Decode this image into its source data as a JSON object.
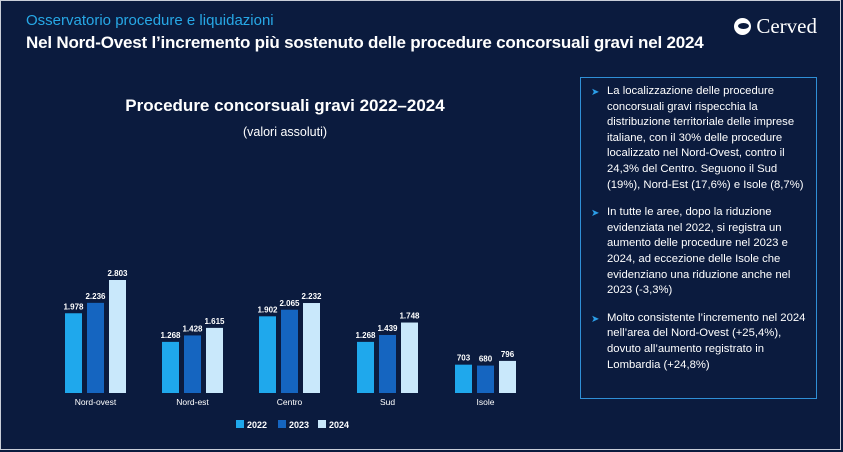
{
  "header": {
    "kicker": "Osservatorio procedure e liquidazioni",
    "title": "Nel Nord-Ovest l’incremento più sostenuto delle procedure concorsuali gravi nel 2024",
    "logo_text": "Cerved"
  },
  "colors": {
    "background": "#0b1b3e",
    "accent": "#27a8e6",
    "s2022": "#1fa8ec",
    "s2023": "#1565c0",
    "s2024": "#c9e8fb"
  },
  "chart_data": {
    "type": "bar",
    "title": "Procedure concorsuali gravi 2022–2024",
    "subtitle": "(valori assoluti)",
    "categories": [
      "Nord-ovest",
      "Nord-est",
      "Centro",
      "Sud",
      "Isole"
    ],
    "series": [
      {
        "name": "2022",
        "values": [
          1978,
          1268,
          1902,
          1268,
          703
        ],
        "labels": [
          "1.978",
          "1.268",
          "1.902",
          "1.268",
          "703"
        ]
      },
      {
        "name": "2023",
        "values": [
          2236,
          1428,
          2065,
          1439,
          680
        ],
        "labels": [
          "2.236",
          "1.428",
          "2.065",
          "1.439",
          "680"
        ]
      },
      {
        "name": "2024",
        "values": [
          2803,
          1615,
          2232,
          1748,
          796
        ],
        "labels": [
          "2.803",
          "1.615",
          "2.232",
          "1.748",
          "796"
        ]
      }
    ],
    "ylim": [
      0,
      3000
    ],
    "grid": false,
    "legend_position": "bottom"
  },
  "notes": [
    "La localizzazione delle procedure concorsuali gravi rispecchia la distribuzione territoriale delle imprese italiane, con il 30% delle procedure localizzato nel Nord-Ovest, contro il 24,3% del Centro. Seguono il Sud (19%), Nord-Est (17,6%) e Isole (8,7%)",
    "In tutte le aree, dopo la riduzione evidenziata nel 2022, si registra un aumento delle procedure nel 2023 e 2024, ad eccezione delle Isole che evidenziano una riduzione anche nel 2023 (-3,3%)",
    "Molto consistente l’incremento nel 2024 nell’area del Nord-Ovest (+25,4%), dovuto all’aumento registrato in Lombardia (+24,8%)"
  ]
}
